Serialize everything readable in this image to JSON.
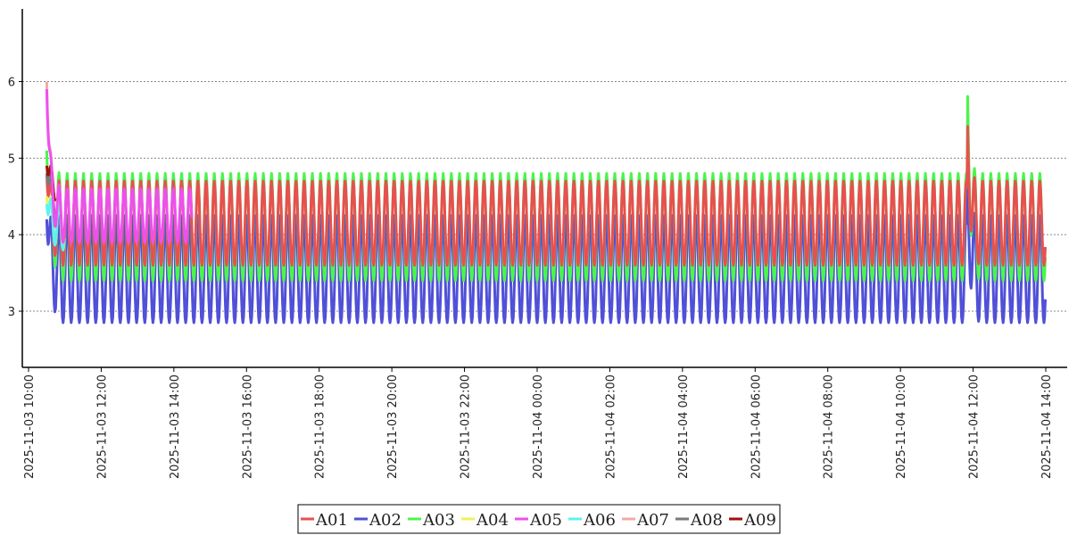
{
  "chart_data": {
    "type": "line",
    "title": "",
    "xlabel": "",
    "ylabel": "",
    "x_range": [
      "2025-11-03 10:00",
      "2025-11-04 14:10"
    ],
    "ylim": [
      2.3,
      7.0
    ],
    "y_ticks": [
      3,
      4,
      5,
      6
    ],
    "x_ticks": [
      "2025-11-03 10:00",
      "2025-11-03 12:00",
      "2025-11-03 14:00",
      "2025-11-03 16:00",
      "2025-11-03 18:00",
      "2025-11-03 20:00",
      "2025-11-03 22:00",
      "2025-11-04 00:00",
      "2025-11-04 02:00",
      "2025-11-04 04:00",
      "2025-11-04 06:00",
      "2025-11-04 08:00",
      "2025-11-04 10:00",
      "2025-11-04 12:00",
      "2025-11-04 14:00"
    ],
    "grid": "horizontal-dotted",
    "legend_position": "bottom-center",
    "series": [
      {
        "name": "A01",
        "color": "#e8504f",
        "start": "2025-11-03 10:30",
        "end": "2025-11-04 14:00",
        "period_minutes": 13.5,
        "min": 3.6,
        "max": 4.7,
        "start_value": 4.8,
        "spike": {
          "time": "2025-11-04 11:50",
          "value": 5.7
        }
      },
      {
        "name": "A02",
        "color": "#5050d8",
        "start": "2025-11-03 10:30",
        "end": "2025-11-04 14:00",
        "period_minutes": 13.5,
        "min": 2.85,
        "max": 4.25,
        "start_value": 4.2,
        "spike": {
          "time": "2025-11-04 11:50",
          "value": 4.9
        }
      },
      {
        "name": "A03",
        "color": "#4cf44c",
        "start": "2025-11-03 10:30",
        "end": "2025-11-04 14:00",
        "period_minutes": 13.5,
        "min": 3.4,
        "max": 4.8,
        "start_value": 5.1,
        "spike": {
          "time": "2025-11-04 11:50",
          "value": 6.2
        }
      },
      {
        "name": "A04",
        "color": "#f2f05a",
        "start": "2025-11-03 10:30",
        "end": "2025-11-03 11:00",
        "period_minutes": 13.5,
        "min": 3.8,
        "max": 4.5,
        "start_value": 4.5
      },
      {
        "name": "A05",
        "color": "#ee50ee",
        "start": "2025-11-03 10:30",
        "end": "2025-11-03 14:30",
        "period_minutes": 13.5,
        "min": 3.9,
        "max": 4.6,
        "start_value": 5.9
      },
      {
        "name": "A06",
        "color": "#5cf2f2",
        "start": "2025-11-03 10:30",
        "end": "2025-11-03 11:00",
        "period_minutes": 13.5,
        "min": 3.8,
        "max": 4.5,
        "start_value": 4.4
      },
      {
        "name": "A07",
        "color": "#f4a8a8",
        "start": "2025-11-03 10:30",
        "end": "2025-11-03 11:00",
        "period_minutes": 13.5,
        "min": 3.9,
        "max": 4.6,
        "start_value": 6.0
      },
      {
        "name": "A08",
        "color": "#7a7a7a",
        "start": "2025-11-03 10:30",
        "end": "2025-11-03 10:45",
        "period_minutes": 13.5,
        "min": 4.2,
        "max": 4.8,
        "start_value": 4.8
      },
      {
        "name": "A09",
        "color": "#a01010",
        "start": "2025-11-03 10:30",
        "end": "2025-11-03 10:45",
        "period_minutes": 13.5,
        "min": 4.4,
        "max": 4.9,
        "start_value": 4.9
      }
    ]
  }
}
